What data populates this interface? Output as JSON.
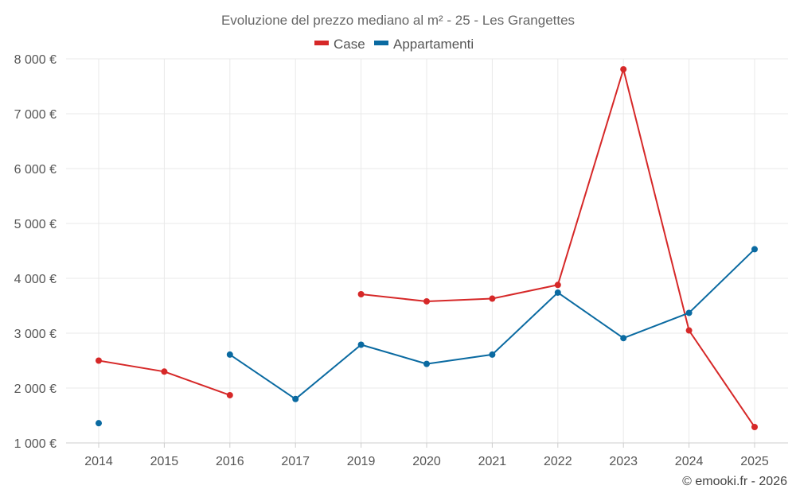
{
  "chart_data": {
    "type": "line",
    "title": "Evoluzione del prezzo mediano al m² - 25 - Les Grangettes",
    "categories": [
      "2014",
      "2015",
      "2016",
      "2017",
      "2019",
      "2020",
      "2021",
      "2022",
      "2023",
      "2024",
      "2025"
    ],
    "series": [
      {
        "name": "Case",
        "color": "#d62828",
        "values": [
          2500,
          2300,
          1870,
          null,
          3710,
          3580,
          3630,
          3880,
          7810,
          3050,
          1290
        ]
      },
      {
        "name": "Appartamenti",
        "color": "#0a6aa1",
        "values": [
          1360,
          null,
          2610,
          1800,
          2790,
          2440,
          2610,
          3740,
          2910,
          3370,
          4530
        ]
      }
    ],
    "ylim": [
      1000,
      8000
    ],
    "yticks": [
      1000,
      2000,
      3000,
      4000,
      5000,
      6000,
      7000,
      8000
    ],
    "ytick_labels": [
      "1 000 €",
      "2 000 €",
      "3 000 €",
      "4 000 €",
      "5 000 €",
      "6 000 €",
      "7 000 €",
      "8 000 €"
    ],
    "xlabel": "",
    "ylabel": "",
    "grid": true,
    "legend_position": "top-center"
  },
  "credit": "© emooki.fr - 2026"
}
